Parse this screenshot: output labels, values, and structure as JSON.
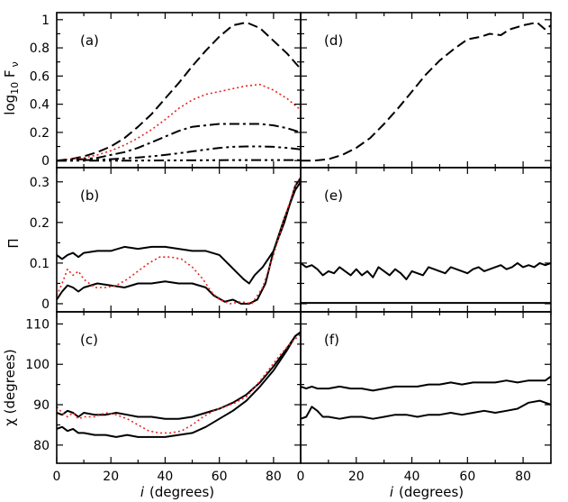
{
  "chart_data": {
    "type": "line",
    "layout": "3 rows x 2 columns of panels with shared axes",
    "x_axis": {
      "label_var": "i",
      "label_unit": "(degrees)",
      "range": [
        0,
        90
      ],
      "ticks": [
        "0",
        "20",
        "40",
        "60",
        "80"
      ]
    },
    "rows": [
      {
        "ylabel": {
          "base": "log",
          "sub": "10",
          "main": " F",
          "sub2": "ν"
        },
        "ylim": [
          -0.05,
          1.05
        ],
        "yticks": [
          0,
          0.2,
          0.4,
          0.6,
          0.8,
          1
        ],
        "ytick_labels": [
          "0",
          "0.2",
          "0.4",
          "0.6",
          "0.8",
          "1"
        ]
      },
      {
        "ylabel": {
          "base": "Π"
        },
        "ylim": [
          -0.02,
          0.335
        ],
        "yticks": [
          0,
          0.1,
          0.2,
          0.3
        ],
        "ytick_labels": [
          "0",
          "0.1",
          "0.2",
          "0.3"
        ]
      },
      {
        "ylabel": {
          "base": "χ (degrees)"
        },
        "ylim": [
          75.5,
          113
        ],
        "yticks": [
          80,
          90,
          100,
          110
        ],
        "ytick_labels": [
          "80",
          "90",
          "100",
          "110"
        ]
      }
    ],
    "panels": [
      {
        "label": "(a)",
        "row": 0,
        "col": 0,
        "series": [
          {
            "name": "dashed",
            "style": "dashed",
            "color": "#000000",
            "x": [
              0,
              5,
              10,
              15,
              20,
              25,
              30,
              35,
              40,
              45,
              50,
              55,
              60,
              65,
              70,
              75,
              80,
              85,
              90
            ],
            "y": [
              0,
              0.01,
              0.03,
              0.06,
              0.1,
              0.16,
              0.24,
              0.33,
              0.44,
              0.55,
              0.67,
              0.78,
              0.88,
              0.96,
              0.98,
              0.94,
              0.85,
              0.76,
              0.65
            ]
          },
          {
            "name": "red dotted",
            "style": "dotted",
            "color": "#e8231f",
            "x": [
              0,
              5,
              10,
              15,
              20,
              25,
              30,
              35,
              40,
              45,
              50,
              55,
              60,
              65,
              70,
              75,
              80,
              85,
              90
            ],
            "y": [
              0,
              0.01,
              0.02,
              0.04,
              0.07,
              0.11,
              0.16,
              0.22,
              0.29,
              0.37,
              0.43,
              0.47,
              0.49,
              0.51,
              0.53,
              0.54,
              0.5,
              0.44,
              0.36
            ]
          },
          {
            "name": "dash-dot",
            "style": "dashdot",
            "color": "#000000",
            "x": [
              0,
              5,
              10,
              15,
              20,
              25,
              30,
              35,
              40,
              45,
              50,
              55,
              60,
              65,
              70,
              75,
              80,
              85,
              90
            ],
            "y": [
              0,
              0.005,
              0.01,
              0.02,
              0.04,
              0.06,
              0.09,
              0.13,
              0.17,
              0.21,
              0.24,
              0.25,
              0.26,
              0.26,
              0.26,
              0.26,
              0.25,
              0.23,
              0.2
            ]
          },
          {
            "name": "dash-dot-dot",
            "style": "dashdotdot",
            "color": "#000000",
            "x": [
              0,
              5,
              10,
              15,
              20,
              25,
              30,
              35,
              40,
              45,
              50,
              55,
              60,
              65,
              70,
              75,
              80,
              85,
              90
            ],
            "y": [
              0,
              0,
              0.003,
              0.006,
              0.01,
              0.015,
              0.022,
              0.03,
              0.04,
              0.052,
              0.065,
              0.078,
              0.09,
              0.098,
              0.1,
              0.1,
              0.098,
              0.09,
              0.08
            ]
          },
          {
            "name": "dash-dot-dot-dot",
            "style": "dashdot3",
            "color": "#000000",
            "x": [
              0,
              10,
              20,
              30,
              40,
              50,
              60,
              70,
              80,
              90
            ],
            "y": [
              0,
              0,
              0,
              0,
              0.001,
              0.002,
              0.003,
              0.004,
              0.004,
              0.003
            ]
          }
        ]
      },
      {
        "label": "(d)",
        "row": 0,
        "col": 1,
        "series": [
          {
            "name": "dashed",
            "style": "dashed",
            "color": "#000000",
            "x": [
              0,
              5,
              10,
              15,
              20,
              25,
              30,
              35,
              40,
              45,
              50,
              55,
              60,
              65,
              68,
              72,
              75,
              80,
              85,
              88,
              90
            ],
            "y": [
              0,
              0,
              0.01,
              0.04,
              0.09,
              0.16,
              0.26,
              0.37,
              0.49,
              0.61,
              0.71,
              0.79,
              0.86,
              0.88,
              0.9,
              0.89,
              0.93,
              0.96,
              0.98,
              0.93,
              0.96
            ]
          }
        ]
      },
      {
        "label": "(b)",
        "row": 1,
        "col": 0,
        "series": [
          {
            "name": "upper solid",
            "style": "solid",
            "color": "#000000",
            "x": [
              0,
              2,
              4,
              6,
              8,
              10,
              15,
              20,
              25,
              30,
              35,
              40,
              45,
              50,
              55,
              60,
              63,
              66,
              69,
              71,
              73,
              76,
              80,
              84,
              88,
              90
            ],
            "y": [
              0.12,
              0.11,
              0.12,
              0.125,
              0.115,
              0.125,
              0.13,
              0.13,
              0.14,
              0.135,
              0.14,
              0.14,
              0.135,
              0.13,
              0.13,
              0.12,
              0.1,
              0.08,
              0.06,
              0.05,
              0.07,
              0.09,
              0.13,
              0.2,
              0.29,
              0.31
            ]
          },
          {
            "name": "lower solid",
            "style": "solid",
            "color": "#000000",
            "x": [
              0,
              2,
              4,
              6,
              8,
              10,
              15,
              20,
              25,
              30,
              35,
              40,
              45,
              50,
              55,
              58,
              62,
              65,
              68,
              71,
              74,
              77,
              80,
              84,
              88,
              90
            ],
            "y": [
              0.01,
              0.03,
              0.045,
              0.04,
              0.03,
              0.04,
              0.05,
              0.045,
              0.04,
              0.05,
              0.05,
              0.055,
              0.05,
              0.05,
              0.04,
              0.02,
              0.005,
              0.01,
              0.0,
              0.0,
              0.01,
              0.05,
              0.13,
              0.21,
              0.28,
              0.3
            ]
          },
          {
            "name": "red dotted",
            "style": "dotted",
            "color": "#e8231f",
            "x": [
              0,
              2,
              4,
              6,
              8,
              10,
              14,
              18,
              22,
              26,
              30,
              34,
              38,
              42,
              46,
              50,
              54,
              57,
              60,
              64,
              68,
              72,
              76,
              80,
              84,
              88,
              90
            ],
            "y": [
              0.02,
              0.05,
              0.085,
              0.07,
              0.08,
              0.06,
              0.04,
              0.04,
              0.045,
              0.06,
              0.08,
              0.1,
              0.115,
              0.115,
              0.11,
              0.09,
              0.06,
              0.03,
              0.01,
              0.0,
              0.005,
              0.0,
              0.04,
              0.12,
              0.21,
              0.29,
              0.31
            ]
          }
        ]
      },
      {
        "label": "(e)",
        "row": 1,
        "col": 1,
        "series": [
          {
            "name": "solid noisy",
            "style": "solid",
            "color": "#000000",
            "x": [
              0,
              2,
              4,
              6,
              8,
              10,
              12,
              14,
              16,
              18,
              20,
              22,
              24,
              26,
              28,
              30,
              32,
              34,
              36,
              38,
              40,
              42,
              44,
              46,
              48,
              50,
              52,
              54,
              56,
              58,
              60,
              62,
              64,
              66,
              68,
              70,
              72,
              74,
              76,
              78,
              80,
              82,
              84,
              86,
              88,
              90
            ],
            "y": [
              0.1,
              0.09,
              0.095,
              0.085,
              0.07,
              0.08,
              0.075,
              0.09,
              0.08,
              0.07,
              0.085,
              0.07,
              0.08,
              0.065,
              0.09,
              0.08,
              0.07,
              0.085,
              0.075,
              0.06,
              0.08,
              0.075,
              0.07,
              0.09,
              0.085,
              0.08,
              0.075,
              0.09,
              0.085,
              0.08,
              0.075,
              0.085,
              0.09,
              0.08,
              0.085,
              0.09,
              0.095,
              0.085,
              0.09,
              0.1,
              0.09,
              0.095,
              0.09,
              0.1,
              0.095,
              0.1
            ]
          },
          {
            "name": "zero line",
            "style": "solid",
            "color": "#000000",
            "x": [
              0,
              90
            ],
            "y": [
              0.002,
              0.002
            ]
          }
        ]
      },
      {
        "label": "(c)",
        "row": 2,
        "col": 0,
        "series": [
          {
            "name": "upper solid",
            "style": "solid",
            "color": "#000000",
            "x": [
              0,
              2,
              4,
              6,
              8,
              10,
              14,
              18,
              22,
              26,
              30,
              35,
              40,
              45,
              50,
              55,
              60,
              65,
              70,
              75,
              80,
              85,
              88,
              90
            ],
            "y": [
              88,
              87.5,
              88.5,
              88,
              87,
              88,
              87.5,
              87.5,
              88,
              87.5,
              87,
              87,
              86.5,
              86.5,
              87,
              88,
              89,
              90.5,
              92.5,
              95.5,
              99.5,
              104,
              107,
              108
            ]
          },
          {
            "name": "lower solid",
            "style": "solid",
            "color": "#000000",
            "x": [
              0,
              2,
              4,
              6,
              8,
              10,
              14,
              18,
              22,
              26,
              30,
              35,
              40,
              45,
              50,
              55,
              60,
              65,
              70,
              75,
              80,
              85,
              88,
              90
            ],
            "y": [
              84,
              84.5,
              83.5,
              84,
              83,
              83,
              82.5,
              82.5,
              82,
              82.5,
              82,
              82,
              82,
              82.5,
              83,
              84.5,
              86.5,
              88.5,
              91,
              94.5,
              98.5,
              103.5,
              107,
              108
            ]
          },
          {
            "name": "red dotted",
            "style": "dotted",
            "color": "#e8231f",
            "x": [
              0,
              2,
              4,
              6,
              8,
              10,
              14,
              18,
              22,
              26,
              30,
              34,
              38,
              42,
              46,
              50,
              54,
              58,
              62,
              66,
              70,
              74,
              78,
              82,
              86,
              90
            ],
            "y": [
              89.5,
              88,
              87,
              88,
              86.5,
              87,
              87,
              88,
              87.5,
              86.5,
              85,
              83.5,
              83,
              83,
              83.5,
              85,
              87,
              88.5,
              89.5,
              90.5,
              92,
              95,
              98.5,
              102,
              105,
              107.5
            ]
          }
        ]
      },
      {
        "label": "(f)",
        "row": 2,
        "col": 1,
        "series": [
          {
            "name": "upper solid",
            "style": "solid",
            "color": "#000000",
            "x": [
              0,
              2,
              4,
              6,
              8,
              10,
              14,
              18,
              22,
              26,
              30,
              34,
              38,
              42,
              46,
              50,
              54,
              58,
              62,
              66,
              70,
              74,
              78,
              82,
              86,
              88,
              90
            ],
            "y": [
              94.5,
              94,
              94.5,
              94,
              94,
              94,
              94.5,
              94,
              94,
              93.5,
              94,
              94.5,
              94.5,
              94.5,
              95,
              95,
              95.5,
              95,
              95.5,
              95.5,
              95.5,
              96,
              95.5,
              96,
              96,
              96,
              97
            ]
          },
          {
            "name": "lower solid",
            "style": "solid",
            "color": "#000000",
            "x": [
              0,
              2,
              4,
              6,
              8,
              10,
              14,
              18,
              22,
              26,
              30,
              34,
              38,
              42,
              46,
              50,
              54,
              58,
              62,
              66,
              70,
              74,
              78,
              82,
              86,
              88,
              90
            ],
            "y": [
              86.5,
              87,
              89.5,
              88.5,
              87,
              87,
              86.5,
              87,
              87,
              86.5,
              87,
              87.5,
              87.5,
              87,
              87.5,
              87.5,
              88,
              87.5,
              88,
              88.5,
              88,
              88.5,
              89,
              90.5,
              91,
              90.5,
              90
            ]
          }
        ]
      }
    ]
  }
}
